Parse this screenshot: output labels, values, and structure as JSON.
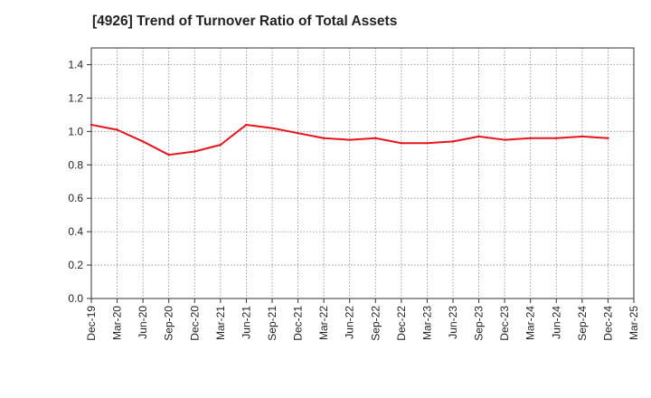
{
  "chart_data": {
    "type": "line",
    "title": "[4926]  Trend of Turnover Ratio of Total Assets",
    "xlabel": "",
    "ylabel": "",
    "ylim": [
      0,
      1.5
    ],
    "yticks": [
      0.0,
      0.2,
      0.4,
      0.6,
      0.8,
      1.0,
      1.2,
      1.4
    ],
    "ytick_labels": [
      "0.0",
      "0.2",
      "0.4",
      "0.6",
      "0.8",
      "1.0",
      "1.2",
      "1.4"
    ],
    "x_tick_labels": [
      "Dec-19",
      "Mar-20",
      "Jun-20",
      "Sep-20",
      "Dec-20",
      "Mar-21",
      "Jun-21",
      "Sep-21",
      "Dec-21",
      "Mar-22",
      "Jun-22",
      "Sep-22",
      "Dec-22",
      "Mar-23",
      "Jun-23",
      "Sep-23",
      "Dec-23",
      "Mar-24",
      "Jun-24",
      "Sep-24",
      "Dec-24",
      "Mar-25"
    ],
    "grid": true,
    "grid_style": "dotted",
    "series": [
      {
        "color": "#e8141b",
        "x": [
          "Dec-19",
          "Mar-20",
          "Jun-20",
          "Sep-20",
          "Dec-20",
          "Mar-21",
          "Jun-21",
          "Sep-21",
          "Dec-21",
          "Mar-22",
          "Jun-22",
          "Sep-22",
          "Dec-22",
          "Mar-23",
          "Jun-23",
          "Sep-23",
          "Dec-23",
          "Mar-24",
          "Jun-24",
          "Sep-24",
          "Dec-24"
        ],
        "values": [
          1.04,
          1.01,
          0.94,
          0.86,
          0.88,
          0.92,
          1.04,
          1.02,
          0.99,
          0.96,
          0.95,
          0.96,
          0.93,
          0.93,
          0.94,
          0.97,
          0.95,
          0.96,
          0.96,
          0.97,
          0.96
        ]
      }
    ]
  }
}
